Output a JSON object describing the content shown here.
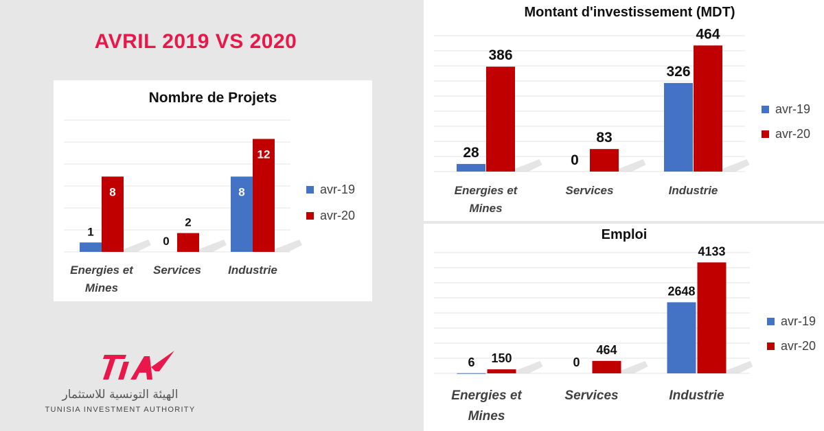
{
  "page": {
    "title": "AVRIL 2019 VS 2020"
  },
  "logo": {
    "name": "TIA",
    "arabic": "الهيئة التونسية للاستثمار",
    "english": "TUNISIA INVESTMENT AUTHORITY",
    "color": "#e8194a"
  },
  "colors": {
    "s2019": "#4472c4",
    "s2020": "#c00000"
  },
  "chart_data": [
    {
      "id": "projets",
      "type": "bar",
      "title": "Nombre de Projets",
      "categories": [
        "Energies et Mines",
        "Services",
        "Industrie"
      ],
      "series": [
        {
          "name": "avr-19",
          "values": [
            1,
            0,
            8
          ]
        },
        {
          "name": "avr-20",
          "values": [
            8,
            2,
            12
          ]
        }
      ],
      "ylim": [
        0,
        14
      ],
      "grid": true,
      "legend": "right"
    },
    {
      "id": "investissement",
      "type": "bar",
      "title": "Montant d'investissement (MDT)",
      "categories": [
        "Energies et Mines",
        "Services",
        "Industrie"
      ],
      "series": [
        {
          "name": "avr-19",
          "values": [
            28,
            0,
            326
          ]
        },
        {
          "name": "avr-20",
          "values": [
            386,
            83,
            464
          ]
        }
      ],
      "ylim": [
        0,
        500
      ],
      "grid": true,
      "legend": "right"
    },
    {
      "id": "emploi",
      "type": "bar",
      "title": "Emploi",
      "categories": [
        "Energies et Mines",
        "Services",
        "Industrie"
      ],
      "series": [
        {
          "name": "avr-19",
          "values": [
            6,
            0,
            2648
          ]
        },
        {
          "name": "avr-20",
          "values": [
            150,
            464,
            4133
          ]
        }
      ],
      "ylim": [
        0,
        4500
      ],
      "grid": true,
      "legend": "right"
    }
  ]
}
